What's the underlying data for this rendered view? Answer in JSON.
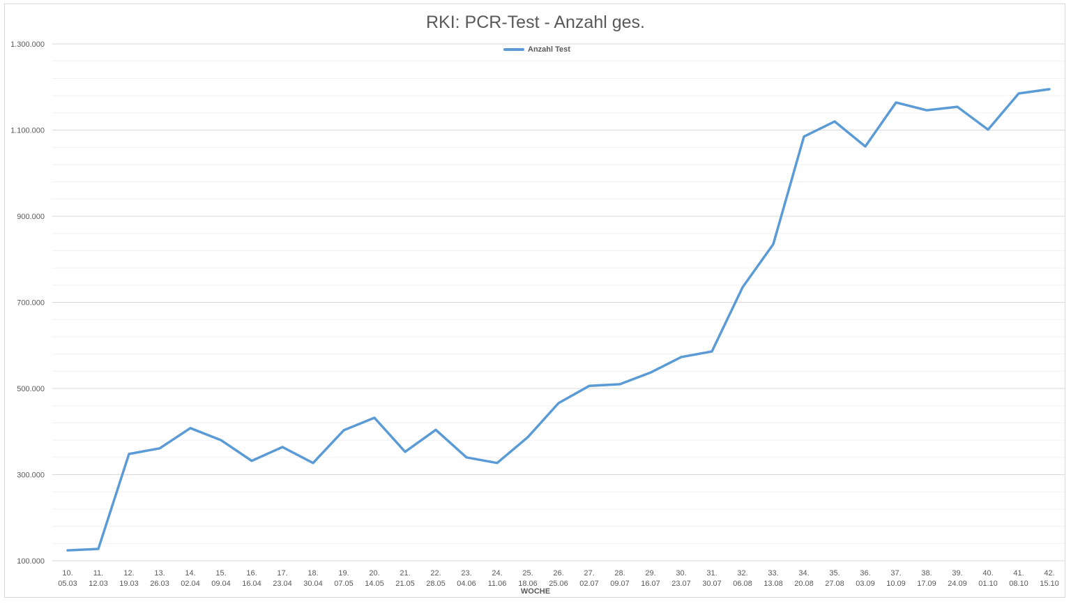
{
  "chart_data": {
    "type": "line",
    "title": "RKI: PCR-Test - Anzahl ges.",
    "xlabel": "WOCHE",
    "ylabel": "",
    "ylim": [
      100000,
      1300000
    ],
    "yticks": [
      100000,
      300000,
      500000,
      700000,
      900000,
      1100000,
      1300000
    ],
    "ytick_labels": [
      "100.000",
      "300.000",
      "500.000",
      "700.000",
      "900.000",
      "1.100.000",
      "1.300.000"
    ],
    "minor_grid_step": 40000,
    "grid": true,
    "legend": "top-center",
    "color": "#5b9bd5",
    "categories": [
      [
        "10.",
        "05.03"
      ],
      [
        "11.",
        "12.03"
      ],
      [
        "12.",
        "19.03"
      ],
      [
        "13.",
        "26.03"
      ],
      [
        "14.",
        "02.04"
      ],
      [
        "15.",
        "09.04"
      ],
      [
        "16.",
        "16.04"
      ],
      [
        "17.",
        "23.04"
      ],
      [
        "18.",
        "30.04"
      ],
      [
        "19.",
        "07.05"
      ],
      [
        "20.",
        "14.05"
      ],
      [
        "21.",
        "21.05"
      ],
      [
        "22.",
        "28.05"
      ],
      [
        "23.",
        "04.06"
      ],
      [
        "24.",
        "11.06"
      ],
      [
        "25.",
        "18.06"
      ],
      [
        "26.",
        "25.06"
      ],
      [
        "27.",
        "02.07"
      ],
      [
        "28.",
        "09.07"
      ],
      [
        "29.",
        "16.07"
      ],
      [
        "30.",
        "23.07"
      ],
      [
        "31.",
        "30.07"
      ],
      [
        "32.",
        "06.08"
      ],
      [
        "33.",
        "13.08"
      ],
      [
        "34.",
        "20.08"
      ],
      [
        "35.",
        "27.08"
      ],
      [
        "36.",
        "03.09"
      ],
      [
        "37.",
        "10.09"
      ],
      [
        "38.",
        "17.09"
      ],
      [
        "39.",
        "24.09"
      ],
      [
        "40.",
        "01.10"
      ],
      [
        "41.",
        "08.10"
      ],
      [
        "42.",
        "15.10"
      ]
    ],
    "series": [
      {
        "name": "Anzahl Test",
        "values": [
          124000,
          127500,
          348000,
          361000,
          408000,
          380000,
          332000,
          364000,
          327000,
          403000,
          432000,
          353000,
          404000,
          340000,
          327000,
          387000,
          466000,
          506000,
          510000,
          537000,
          573000,
          586000,
          735000,
          835000,
          1085000,
          1120000,
          1062000,
          1164000,
          1146000,
          1154000,
          1101000,
          1185000,
          1195000
        ]
      }
    ]
  }
}
